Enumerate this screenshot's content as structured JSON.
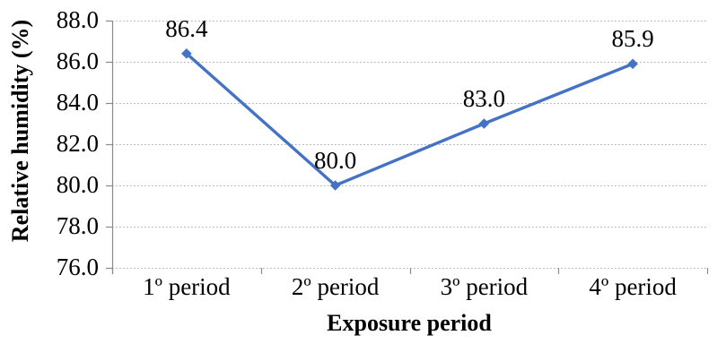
{
  "chart_data": {
    "type": "line",
    "title": "",
    "categories": [
      "1º period",
      "2º period",
      "3º period",
      "4º period"
    ],
    "series": [
      {
        "name": "Relative humidity",
        "values": [
          86.4,
          80.0,
          83.0,
          85.9
        ]
      }
    ],
    "data_labels": [
      "86.4",
      "80.0",
      "83.0",
      "85.9"
    ],
    "xlabel": "Exposure period",
    "ylabel": "Relative humidity (%)",
    "ylim": [
      76.0,
      88.0
    ],
    "ytick_step": 2.0,
    "yticks": [
      "88.0",
      "86.0",
      "84.0",
      "82.0",
      "80.0",
      "78.0",
      "76.0"
    ],
    "legend": "none",
    "grid": "horizontal-dotted",
    "marker": "diamond",
    "colors": {
      "line": "#4472C4",
      "marker": "#4472C4",
      "gridline": "#ACACAC",
      "axis": "#8A8A8A",
      "text": "#000000",
      "background": "#FFFFFF"
    }
  }
}
